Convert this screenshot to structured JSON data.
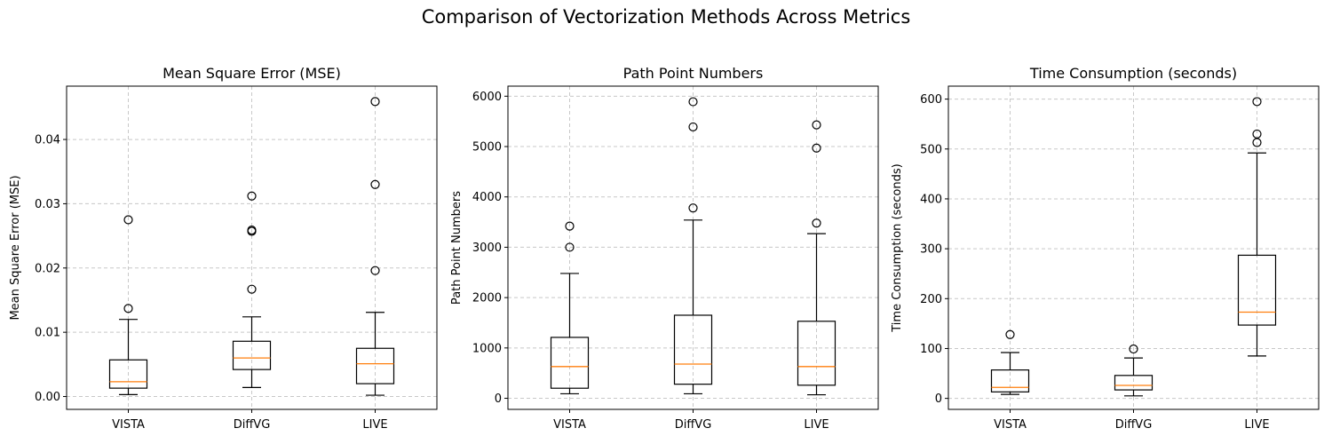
{
  "suptitle": "Comparison of Vectorization Methods Across Metrics",
  "chart_data": [
    {
      "type": "box",
      "title": "Mean Square Error (MSE)",
      "xlabel": "",
      "ylabel": "Mean Square Error (MSE)",
      "categories": [
        "VISTA",
        "DiffVG",
        "LIVE"
      ],
      "ylim": [
        -0.002,
        0.0483
      ],
      "yticks": [
        0.0,
        0.01,
        0.02,
        0.03,
        0.04
      ],
      "ytick_labels": [
        "0.00",
        "0.01",
        "0.02",
        "0.03",
        "0.04"
      ],
      "grid": true,
      "boxes": [
        {
          "whisker_low": 0.0003,
          "q1": 0.0013,
          "median": 0.0023,
          "q3": 0.0057,
          "whisker_high": 0.012,
          "outliers": [
            0.0137,
            0.0275
          ]
        },
        {
          "whisker_low": 0.0014,
          "q1": 0.0042,
          "median": 0.006,
          "q3": 0.0086,
          "whisker_high": 0.0124,
          "outliers": [
            0.0167,
            0.0257,
            0.0259,
            0.0312
          ]
        },
        {
          "whisker_low": 0.0002,
          "q1": 0.002,
          "median": 0.0051,
          "q3": 0.0075,
          "whisker_high": 0.0131,
          "outliers": [
            0.0196,
            0.033,
            0.0459
          ]
        }
      ]
    },
    {
      "type": "box",
      "title": "Path Point Numbers",
      "xlabel": "",
      "ylabel": "Path Point Numbers",
      "categories": [
        "VISTA",
        "DiffVG",
        "LIVE"
      ],
      "ylim": [
        -220,
        6200
      ],
      "yticks": [
        0,
        1000,
        2000,
        3000,
        4000,
        5000,
        6000
      ],
      "ytick_labels": [
        "0",
        "1000",
        "2000",
        "3000",
        "4000",
        "5000",
        "6000"
      ],
      "grid": true,
      "boxes": [
        {
          "whisker_low": 90,
          "q1": 200,
          "median": 630,
          "q3": 1210,
          "whisker_high": 2480,
          "outliers": [
            3000,
            3420
          ]
        },
        {
          "whisker_low": 90,
          "q1": 280,
          "median": 680,
          "q3": 1650,
          "whisker_high": 3540,
          "outliers": [
            3780,
            5390,
            5890
          ]
        },
        {
          "whisker_low": 70,
          "q1": 260,
          "median": 630,
          "q3": 1530,
          "whisker_high": 3270,
          "outliers": [
            3480,
            4970,
            5430
          ]
        }
      ]
    },
    {
      "type": "box",
      "title": "Time Consumption (seconds)",
      "xlabel": "",
      "ylabel": "Time Consumption (seconds)",
      "categories": [
        "VISTA",
        "DiffVG",
        "LIVE"
      ],
      "ylim": [
        -22,
        626
      ],
      "yticks": [
        0,
        100,
        200,
        300,
        400,
        500,
        600
      ],
      "ytick_labels": [
        "0",
        "100",
        "200",
        "300",
        "400",
        "500",
        "600"
      ],
      "grid": true,
      "boxes": [
        {
          "whisker_low": 8,
          "q1": 13,
          "median": 22,
          "q3": 57,
          "whisker_high": 92,
          "outliers": [
            128
          ]
        },
        {
          "whisker_low": 5,
          "q1": 17,
          "median": 26,
          "q3": 46,
          "whisker_high": 81,
          "outliers": [
            99
          ]
        },
        {
          "whisker_low": 85,
          "q1": 147,
          "median": 173,
          "q3": 287,
          "whisker_high": 492,
          "outliers": [
            513,
            530,
            595
          ]
        }
      ]
    }
  ]
}
